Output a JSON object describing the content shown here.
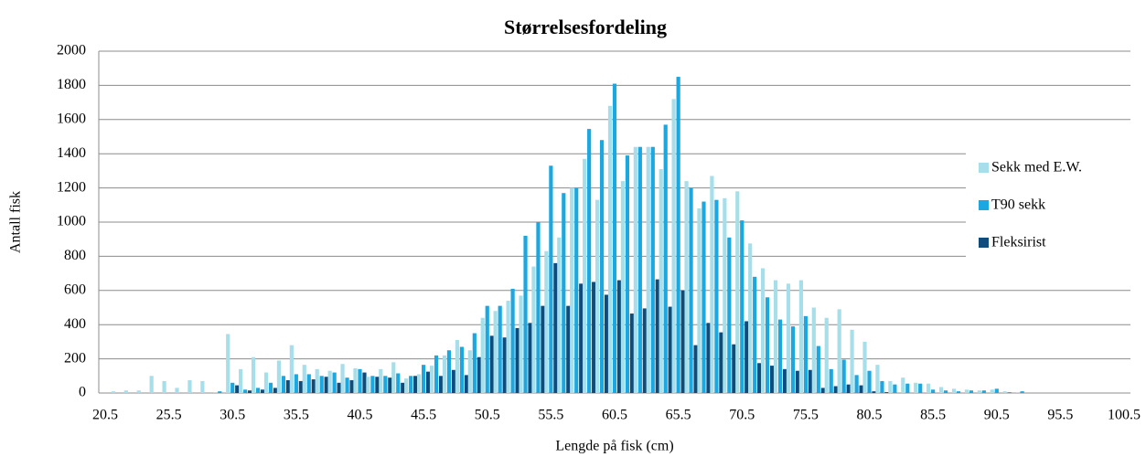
{
  "chart_data": {
    "type": "bar",
    "title": "Størrelsesfordeling",
    "x_label": "Lengde på fisk (cm)",
    "y_label": "Antall fisk",
    "categories": [
      "20.5",
      null,
      null,
      null,
      null,
      "25.5",
      null,
      null,
      null,
      null,
      "30.5",
      null,
      null,
      null,
      null,
      "35.5",
      null,
      null,
      null,
      null,
      "40.5",
      null,
      null,
      null,
      null,
      "45.5",
      null,
      null,
      null,
      null,
      "50.5",
      null,
      null,
      null,
      null,
      "55.5",
      null,
      null,
      null,
      null,
      "60.5",
      null,
      null,
      null,
      null,
      "65.5",
      null,
      null,
      null,
      null,
      "70.5",
      null,
      null,
      null,
      null,
      "75.5",
      null,
      null,
      null,
      null,
      "80.5",
      null,
      null,
      null,
      null,
      "85.5",
      null,
      null,
      null,
      null,
      "90.5",
      null,
      null,
      null,
      null,
      "95.5",
      null,
      null,
      null,
      null,
      "100.5"
    ],
    "series": [
      {
        "name": "Sekk med E.W.",
        "color": "#a6dfe9",
        "values": [
          0,
          10,
          15,
          15,
          100,
          70,
          30,
          75,
          70,
          5,
          345,
          140,
          210,
          120,
          190,
          280,
          165,
          140,
          130,
          170,
          145,
          95,
          140,
          180,
          85,
          110,
          160,
          220,
          310,
          250,
          440,
          480,
          540,
          570,
          740,
          830,
          910,
          1200,
          1370,
          1130,
          1680,
          1240,
          1440,
          1440,
          1310,
          1720,
          1240,
          1080,
          1270,
          1140,
          1180,
          875,
          730,
          660,
          640,
          660,
          500,
          440,
          490,
          370,
          300,
          165,
          70,
          90,
          60,
          55,
          35,
          25,
          20,
          15,
          20,
          10,
          5,
          0,
          0,
          0,
          0,
          0,
          0,
          0,
          0
        ]
      },
      {
        "name": "T90 sekk",
        "color": "#1ba8e0",
        "values": [
          0,
          0,
          0,
          0,
          0,
          0,
          0,
          0,
          0,
          10,
          60,
          20,
          30,
          60,
          100,
          110,
          110,
          100,
          120,
          90,
          140,
          100,
          100,
          115,
          100,
          165,
          220,
          250,
          270,
          350,
          510,
          510,
          610,
          920,
          1000,
          1330,
          1170,
          1200,
          1545,
          1480,
          1810,
          1390,
          1440,
          1440,
          1570,
          1850,
          1200,
          1120,
          1130,
          910,
          1010,
          680,
          560,
          430,
          390,
          450,
          275,
          140,
          195,
          105,
          130,
          70,
          50,
          55,
          55,
          20,
          15,
          10,
          15,
          15,
          25,
          5,
          10,
          0,
          0,
          0,
          0,
          0,
          0,
          0,
          0
        ]
      },
      {
        "name": "Fleksirist",
        "color": "#0f4c7c",
        "values": [
          0,
          0,
          0,
          0,
          0,
          0,
          0,
          0,
          0,
          0,
          45,
          15,
          20,
          30,
          75,
          70,
          80,
          95,
          60,
          75,
          120,
          95,
          90,
          60,
          100,
          125,
          100,
          135,
          105,
          210,
          335,
          325,
          380,
          410,
          510,
          760,
          510,
          640,
          650,
          575,
          660,
          465,
          495,
          665,
          505,
          600,
          280,
          410,
          355,
          285,
          420,
          175,
          160,
          140,
          130,
          135,
          30,
          40,
          50,
          45,
          10,
          5,
          0,
          0,
          0,
          0,
          0,
          0,
          0,
          0,
          0,
          0,
          0,
          0,
          0,
          0,
          0,
          0,
          0,
          0,
          0
        ]
      }
    ],
    "ylim": [
      0,
      2000
    ],
    "yticks": [
      0,
      200,
      400,
      600,
      800,
      1000,
      1200,
      1400,
      1600,
      1800,
      2000
    ],
    "grid": true,
    "legend": "right"
  }
}
